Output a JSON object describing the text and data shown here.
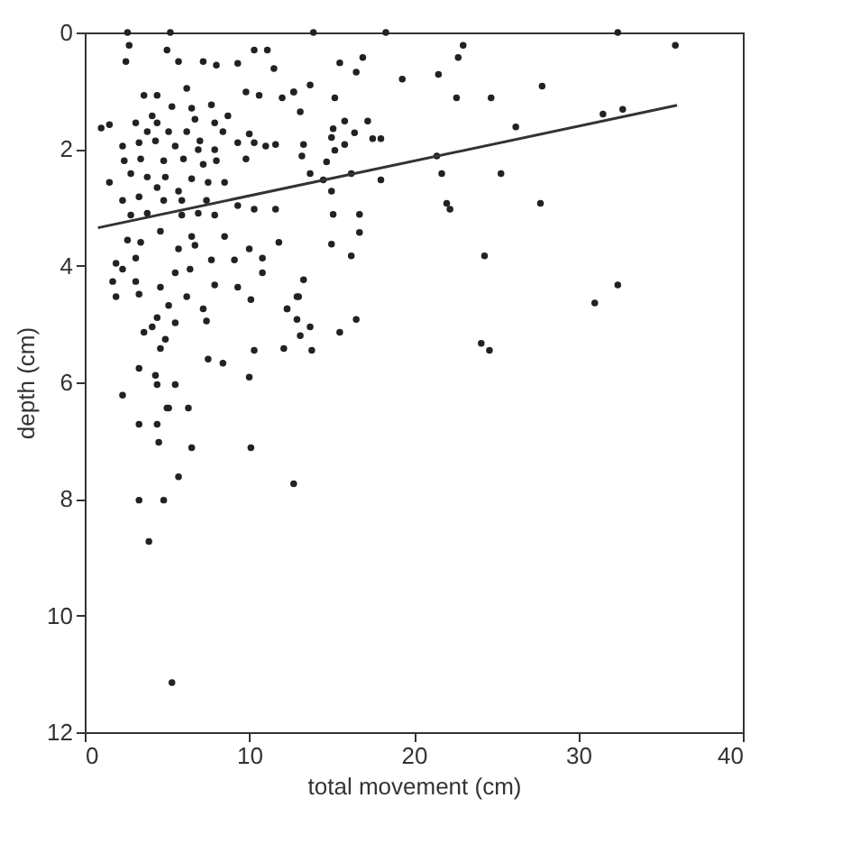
{
  "chart_data": {
    "type": "scatter",
    "xlabel": "total movement (cm)",
    "ylabel": "depth (cm)",
    "xlim": [
      0,
      40
    ],
    "xticks": [
      0,
      10,
      20,
      30,
      40
    ],
    "ylim": [
      12,
      0
    ],
    "yticks": [
      0,
      2,
      4,
      6,
      8,
      10,
      12
    ],
    "grid": false,
    "series": [
      {
        "marker": "circle",
        "color": "#222222",
        "x": [
          2.6,
          5.2,
          13.9,
          18.3,
          32.4,
          23.0,
          22.7,
          35.9,
          15.5,
          16.9,
          16.5,
          19.3,
          21.5,
          13.7,
          12.7,
          15.2,
          22.6,
          24.7,
          27.8,
          13.1,
          31.5,
          32.7,
          26.2,
          15.8,
          17.2,
          15.1,
          16.4,
          15.0,
          17.5,
          18.0,
          13.3,
          15.8,
          15.2,
          13.2,
          14.7,
          21.4,
          13.7,
          16.2,
          21.7,
          25.3,
          14.5,
          18.0,
          15.0,
          22.0,
          22.2,
          27.7,
          15.1,
          16.7,
          16.7,
          15.0,
          16.2,
          24.3,
          13.3,
          13.0,
          32.4,
          31.0,
          12.3,
          12.9,
          13.7,
          16.5,
          15.5,
          13.8,
          24.1,
          24.6,
          5.0,
          6.3,
          3.3,
          4.4,
          4.5,
          6.5,
          10.1,
          5.7,
          12.7,
          3.3,
          4.8,
          3.9,
          5.3,
          2.7,
          2.5,
          5.0,
          5.7,
          7.2,
          8.0,
          9.3,
          10.3,
          11.1,
          11.5,
          6.2,
          3.6,
          4.4,
          9.8,
          10.6,
          12.0,
          12.7,
          5.3,
          6.5,
          7.7,
          4.1,
          1.0,
          1.5,
          3.1,
          4.4,
          6.7,
          7.9,
          8.7,
          10.0,
          9.3,
          8.4,
          3.8,
          5.1,
          6.2,
          7.0,
          2.3,
          3.3,
          4.3,
          5.5,
          6.9,
          7.9,
          10.3,
          11.0,
          11.6,
          2.4,
          3.4,
          4.8,
          6.0,
          7.2,
          8.0,
          9.8,
          2.8,
          3.8,
          4.9,
          6.5,
          7.5,
          8.5,
          1.5,
          4.4,
          5.7,
          2.3,
          3.3,
          4.8,
          5.9,
          7.4,
          9.3,
          10.3,
          11.6,
          2.8,
          3.8,
          5.9,
          6.9,
          7.9,
          4.6,
          6.5,
          8.5,
          11.8,
          2.6,
          3.4,
          5.7,
          6.7,
          7.7,
          9.1,
          10.0,
          10.8,
          1.9,
          3.1,
          2.3,
          5.5,
          6.4,
          10.8,
          1.7,
          3.1,
          4.6,
          7.9,
          9.3,
          1.9,
          3.3,
          6.2,
          10.1,
          12.9,
          5.1,
          7.2,
          4.4,
          12.3,
          4.1,
          5.5,
          7.4,
          3.6,
          4.9,
          13.1,
          4.6,
          7.5,
          8.4,
          10.3,
          12.1,
          3.3,
          4.3,
          5.5,
          4.4,
          10.0,
          2.3,
          5.1
        ],
        "values": [
          0,
          0,
          0,
          0,
          0,
          0.22,
          0.43,
          0.22,
          0.52,
          0.43,
          0.68,
          0.8,
          0.72,
          0.9,
          1.02,
          1.12,
          1.12,
          1.12,
          0.92,
          1.36,
          1.4,
          1.32,
          1.62,
          1.52,
          1.52,
          1.65,
          1.72,
          1.8,
          1.82,
          1.82,
          1.92,
          1.92,
          2.02,
          2.12,
          2.22,
          2.12,
          2.42,
          2.42,
          2.42,
          2.42,
          2.53,
          2.53,
          2.72,
          2.93,
          3.03,
          2.93,
          3.12,
          3.12,
          3.43,
          3.63,
          3.83,
          3.83,
          4.24,
          4.53,
          4.33,
          4.64,
          4.74,
          4.92,
          5.05,
          4.92,
          5.14,
          5.45,
          5.33,
          5.45,
          6.44,
          6.44,
          6.72,
          6.72,
          7.03,
          7.12,
          7.12,
          7.62,
          7.74,
          8.02,
          8.02,
          8.73,
          11.15,
          0.22,
          0.5,
          0.3,
          0.5,
          0.5,
          0.56,
          0.53,
          0.3,
          0.3,
          0.62,
          0.96,
          1.08,
          1.08,
          1.02,
          1.08,
          1.12,
          1.02,
          1.27,
          1.3,
          1.24,
          1.43,
          1.64,
          1.58,
          1.55,
          1.55,
          1.49,
          1.55,
          1.43,
          1.74,
          1.89,
          1.7,
          1.7,
          1.7,
          1.7,
          1.86,
          1.95,
          1.89,
          1.86,
          1.95,
          2.01,
          2.01,
          1.89,
          1.95,
          1.92,
          2.2,
          2.17,
          2.2,
          2.17,
          2.26,
          2.2,
          2.17,
          2.42,
          2.48,
          2.48,
          2.51,
          2.57,
          2.57,
          2.57,
          2.66,
          2.72,
          2.88,
          2.82,
          2.88,
          2.88,
          2.88,
          2.97,
          3.03,
          3.03,
          3.13,
          3.1,
          3.13,
          3.1,
          3.13,
          3.41,
          3.5,
          3.5,
          3.6,
          3.56,
          3.6,
          3.71,
          3.65,
          3.9,
          3.9,
          3.71,
          3.87,
          3.96,
          3.87,
          4.06,
          4.12,
          4.06,
          4.12,
          4.27,
          4.27,
          4.37,
          4.33,
          4.37,
          4.53,
          4.49,
          4.53,
          4.58,
          4.53,
          4.68,
          4.74,
          4.89,
          4.74,
          5.05,
          4.98,
          4.95,
          5.14,
          5.26,
          5.2,
          5.42,
          5.6,
          5.67,
          5.45,
          5.42,
          5.76,
          5.88,
          6.04,
          6.04,
          5.91,
          6.22,
          6.44
        ]
      },
      {
        "type": "line",
        "color": "#333333",
        "x": [
          0.8,
          36
        ],
        "values": [
          3.35,
          1.25
        ]
      }
    ]
  }
}
